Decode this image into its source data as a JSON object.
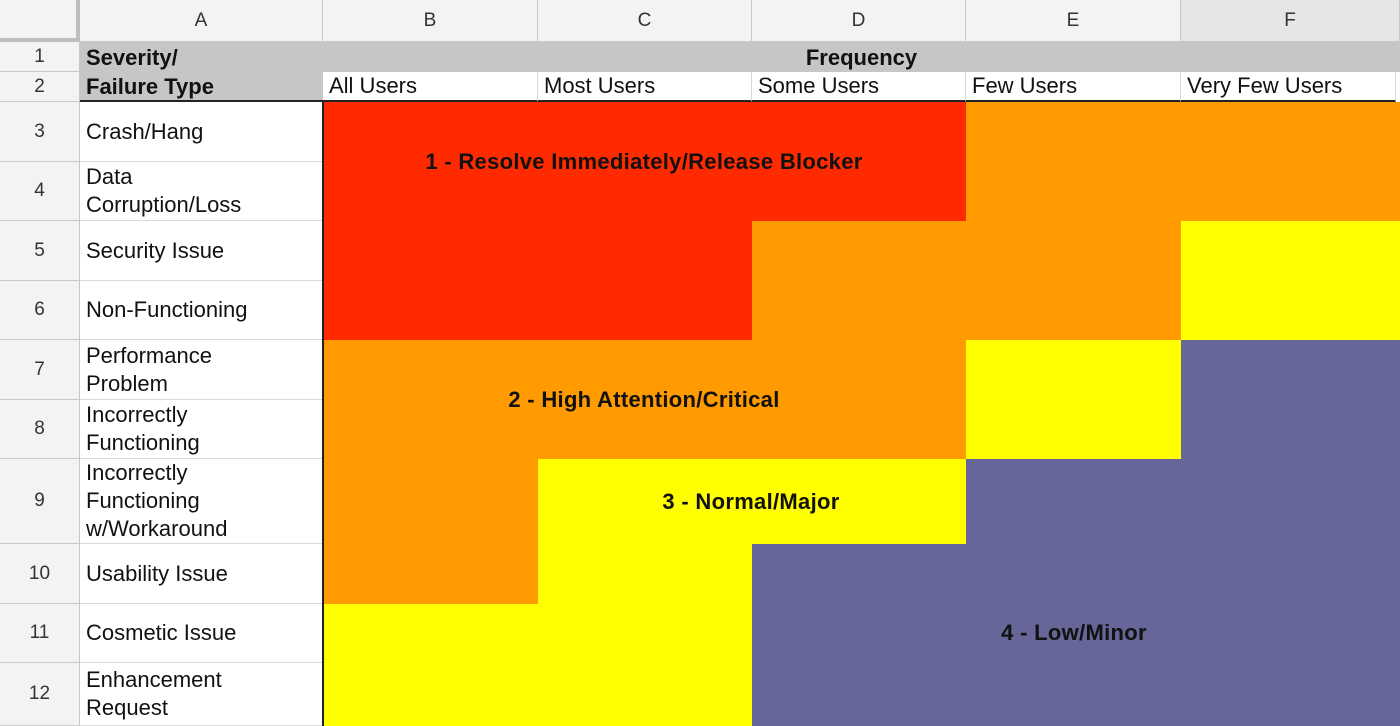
{
  "columns": [
    "A",
    "B",
    "C",
    "D",
    "E",
    "F"
  ],
  "rows": [
    "1",
    "2",
    "3",
    "4",
    "5",
    "6",
    "7",
    "8",
    "9",
    "10",
    "11",
    "12"
  ],
  "header": {
    "severity_title_line1": "Severity/",
    "severity_title_line2": "Failure Type",
    "frequency_title": "Frequency",
    "frequencies": [
      "All Users",
      "Most Users",
      "Some Users",
      "Few Users",
      "Very Few Users"
    ]
  },
  "failure_types": [
    "Crash/Hang",
    "Data Corruption/Loss",
    "Security Issue",
    "Non-Functioning",
    "Performance Problem",
    "Incorrectly Functioning",
    "Incorrectly Functioning w/Workaround",
    "Usability Issue",
    "Cosmetic Issue",
    "Enhancement Request"
  ],
  "priority_labels": {
    "p1": "1 - Resolve Immediately/Release Blocker",
    "p2": "2 - High Attention/Critical",
    "p3": "3 - Normal/Major",
    "p4": "4 - Low/Minor"
  },
  "colors": {
    "p1": "#ff2a00",
    "p2": "#ff9a00",
    "p3": "#ffff00",
    "p4": "#666699"
  },
  "priority_matrix": [
    [
      1,
      1,
      1,
      2,
      2
    ],
    [
      1,
      1,
      1,
      2,
      2
    ],
    [
      1,
      1,
      2,
      2,
      3
    ],
    [
      1,
      1,
      2,
      2,
      3
    ],
    [
      2,
      2,
      2,
      3,
      4
    ],
    [
      2,
      2,
      2,
      3,
      4
    ],
    [
      2,
      3,
      3,
      4,
      4
    ],
    [
      2,
      3,
      4,
      4,
      4
    ],
    [
      3,
      3,
      4,
      4,
      4
    ],
    [
      3,
      3,
      4,
      4,
      4
    ]
  ]
}
